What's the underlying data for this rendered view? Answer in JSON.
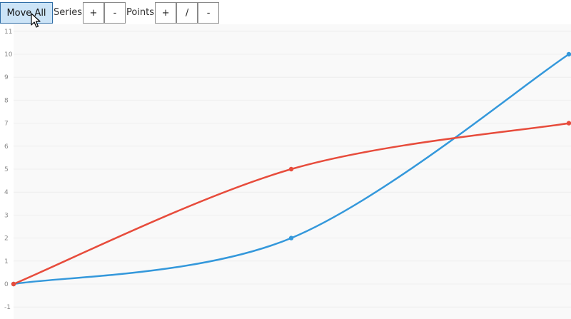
{
  "toolbar": {
    "move_all_label": "Move All",
    "series_label": "Series",
    "series_add_label": "+",
    "series_remove_label": "-",
    "points_label": "Points",
    "points_add_label": "+",
    "points_slash_label": "/",
    "points_remove_label": "-"
  },
  "chart_data": {
    "type": "line",
    "smooth": true,
    "grid": true,
    "ylim": [
      -1,
      11
    ],
    "xlim": [
      0,
      2
    ],
    "yticks": [
      "-1",
      "0",
      "1",
      "2",
      "3",
      "4",
      "5",
      "6",
      "7",
      "8",
      "9",
      "10",
      "11"
    ],
    "colors": {
      "series_1": "#3498db",
      "series_2": "#e74c3c",
      "grid": "#eeeeee",
      "plot_bg": "#f9f9f9",
      "tick_text": "#888888"
    },
    "series": [
      {
        "x": [
          0,
          1,
          2
        ],
        "values": [
          0,
          2,
          10
        ],
        "color": "#3498db"
      },
      {
        "x": [
          0,
          1,
          2
        ],
        "values": [
          0,
          5,
          7
        ],
        "color": "#e74c3c"
      }
    ]
  }
}
